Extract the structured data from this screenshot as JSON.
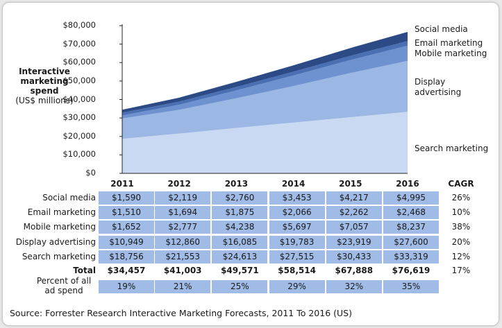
{
  "chart_data": {
    "type": "area",
    "stacked": true,
    "title": "",
    "ylabel": "Interactive marketing spend",
    "ylabel_unit": "(US$ millions)",
    "x": [
      "2011",
      "2012",
      "2013",
      "2014",
      "2015",
      "2016"
    ],
    "ylim": [
      0,
      80000
    ],
    "yticks": [
      "$0",
      "$10,000",
      "$20,000",
      "$30,000",
      "$40,000",
      "$50,000",
      "$60,000",
      "$70,000",
      "$80,000"
    ],
    "series": [
      {
        "name": "Search marketing",
        "values": [
          18756,
          21553,
          24613,
          27515,
          30433,
          33319
        ],
        "color": "#c9d9f2"
      },
      {
        "name": "Display advertising",
        "values": [
          10949,
          12860,
          16085,
          19783,
          23919,
          27600
        ],
        "color": "#9bb7e3"
      },
      {
        "name": "Mobile marketing",
        "values": [
          1652,
          2777,
          4238,
          5697,
          7057,
          8237
        ],
        "color": "#6e92cf"
      },
      {
        "name": "Email marketing",
        "values": [
          1510,
          1694,
          1875,
          2066,
          2262,
          2468
        ],
        "color": "#4a6fb3"
      },
      {
        "name": "Social media",
        "values": [
          1590,
          2119,
          2760,
          3453,
          4217,
          4995
        ],
        "color": "#2b4a86"
      }
    ],
    "area_labels": {
      "social": "Social media",
      "email": "Email marketing",
      "mobile": "Mobile marketing",
      "display_line1": "Display",
      "display_line2": "advertising",
      "search": "Search marketing"
    }
  },
  "table": {
    "cagr_header": "CAGR",
    "rows": [
      {
        "label": "Social media",
        "values": [
          "$1,590",
          "$2,119",
          "$2,760",
          "$3,453",
          "$4,217",
          "$4,995"
        ],
        "cagr": "26%"
      },
      {
        "label": "Email marketing",
        "values": [
          "$1,510",
          "$1,694",
          "$1,875",
          "$2,066",
          "$2,262",
          "$2,468"
        ],
        "cagr": "10%"
      },
      {
        "label": "Mobile marketing",
        "values": [
          "$1,652",
          "$2,777",
          "$4,238",
          "$5,697",
          "$7,057",
          "$8,237"
        ],
        "cagr": "38%"
      },
      {
        "label": "Display advertising",
        "values": [
          "$10,949",
          "$12,860",
          "$16,085",
          "$19,783",
          "$23,919",
          "$27,600"
        ],
        "cagr": "20%"
      },
      {
        "label": "Search marketing",
        "values": [
          "$18,756",
          "$21,553",
          "$24,613",
          "$27,515",
          "$30,433",
          "$33,319"
        ],
        "cagr": "12%"
      }
    ],
    "total": {
      "label": "Total",
      "values": [
        "$34,457",
        "$41,003",
        "$49,571",
        "$58,514",
        "$67,888",
        "$76,619"
      ],
      "cagr": "17%"
    },
    "percent": {
      "label_line1": "Percent of all",
      "label_line2": "ad spend",
      "values": [
        "19%",
        "21%",
        "25%",
        "29%",
        "32%",
        "35%"
      ]
    }
  },
  "source": "Source: Forrester Research Interactive Marketing Forecasts, 2011 To 2016 (US)"
}
